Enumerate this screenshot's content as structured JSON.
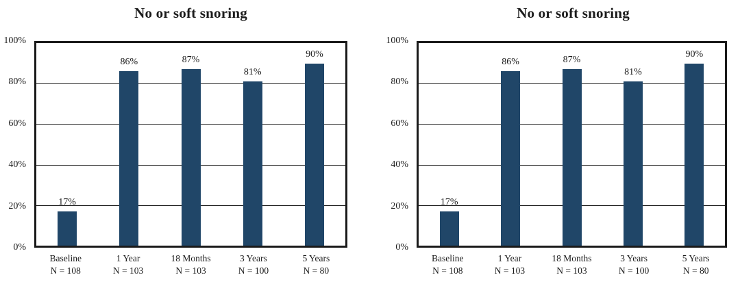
{
  "chart_data": [
    {
      "type": "bar",
      "title": "No or soft snoring",
      "categories": [
        "Baseline",
        "1 Year",
        "18 Months",
        "3 Years",
        "5 Years"
      ],
      "sample_sizes": [
        "N = 108",
        "N = 103",
        "N = 103",
        "N = 100",
        "N = 80"
      ],
      "values": [
        17,
        86,
        87,
        81,
        90
      ],
      "data_labels": [
        "17%",
        "86%",
        "87%",
        "81%",
        "90%"
      ],
      "xlabel": "",
      "ylabel": "",
      "ylim": [
        0,
        100
      ],
      "y_ticks": [
        0,
        20,
        40,
        60,
        80,
        100
      ],
      "y_tick_labels": [
        "0%",
        "20%",
        "40%",
        "60%",
        "80%",
        "100%"
      ],
      "grid": true,
      "legend": false,
      "bar_color": "#204668",
      "border_color": "#1a1a1a"
    },
    {
      "type": "bar",
      "title": "No or soft snoring",
      "categories": [
        "Baseline",
        "1 Year",
        "18 Months",
        "3 Years",
        "5 Years"
      ],
      "sample_sizes": [
        "N = 108",
        "N = 103",
        "N = 103",
        "N = 100",
        "N = 80"
      ],
      "values": [
        17,
        86,
        87,
        81,
        90
      ],
      "data_labels": [
        "17%",
        "86%",
        "87%",
        "81%",
        "90%"
      ],
      "xlabel": "",
      "ylabel": "",
      "ylim": [
        0,
        100
      ],
      "y_ticks": [
        0,
        20,
        40,
        60,
        80,
        100
      ],
      "y_tick_labels": [
        "0%",
        "20%",
        "40%",
        "60%",
        "80%",
        "100%"
      ],
      "grid": true,
      "legend": false,
      "bar_color": "#204668",
      "border_color": "#1a1a1a"
    }
  ]
}
